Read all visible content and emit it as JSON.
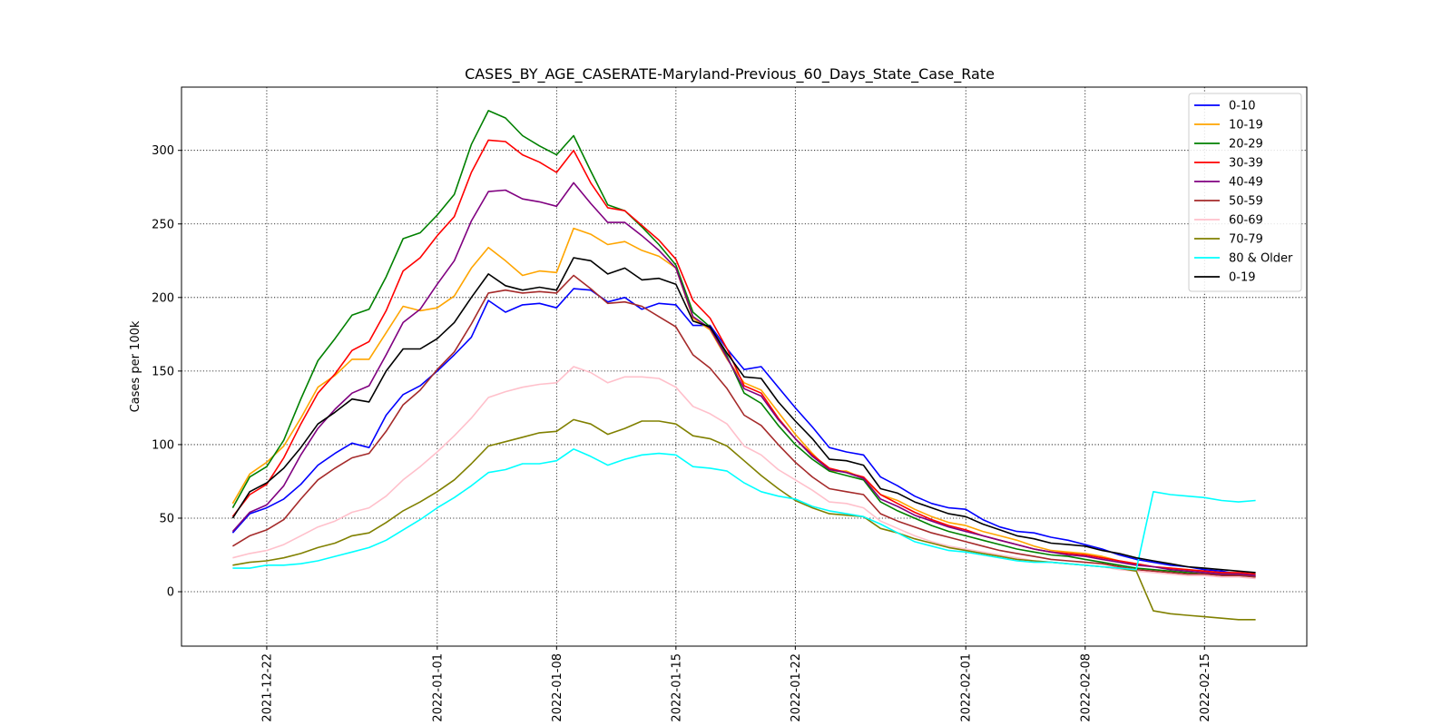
{
  "chart_data": {
    "type": "line",
    "title": "CASES_BY_AGE_CASERATE-Maryland-Previous_60_Days_State_Case_Rate",
    "xlabel": "",
    "ylabel": "Cases per 100k",
    "x_start": "2021-12-20",
    "x": [
      "2021-12-20",
      "2021-12-21",
      "2021-12-22",
      "2021-12-23",
      "2021-12-24",
      "2021-12-25",
      "2021-12-26",
      "2021-12-27",
      "2021-12-28",
      "2021-12-29",
      "2021-12-30",
      "2021-12-31",
      "2022-01-01",
      "2022-01-02",
      "2022-01-03",
      "2022-01-04",
      "2022-01-05",
      "2022-01-06",
      "2022-01-07",
      "2022-01-08",
      "2022-01-09",
      "2022-01-10",
      "2022-01-11",
      "2022-01-12",
      "2022-01-13",
      "2022-01-14",
      "2022-01-15",
      "2022-01-16",
      "2022-01-17",
      "2022-01-18",
      "2022-01-19",
      "2022-01-20",
      "2022-01-21",
      "2022-01-22",
      "2022-01-23",
      "2022-01-24",
      "2022-01-25",
      "2022-01-26",
      "2022-01-27",
      "2022-01-28",
      "2022-01-29",
      "2022-01-30",
      "2022-01-31",
      "2022-02-01",
      "2022-02-02",
      "2022-02-03",
      "2022-02-04",
      "2022-02-05",
      "2022-02-06",
      "2022-02-07",
      "2022-02-08",
      "2022-02-09",
      "2022-02-10",
      "2022-02-11",
      "2022-02-12",
      "2022-02-13",
      "2022-02-14",
      "2022-02-15",
      "2022-02-16",
      "2022-02-17",
      "2022-02-18"
    ],
    "x_ticks": [
      "2021-12-22",
      "2022-01-01",
      "2022-01-08",
      "2022-01-15",
      "2022-01-22",
      "2022-02-01",
      "2022-02-08",
      "2022-02-15"
    ],
    "xlim": [
      "2021-12-17",
      "2022-02-21"
    ],
    "ylim": [
      -37,
      343
    ],
    "y_ticks": [
      0,
      50,
      100,
      150,
      200,
      250,
      300
    ],
    "grid": true,
    "legend_position": "top-right",
    "series": [
      {
        "name": "0-10",
        "color": "#0000ff",
        "values": [
          40,
          53,
          57,
          63,
          73,
          86,
          94,
          101,
          98,
          120,
          134,
          140,
          150,
          161,
          173,
          198,
          190,
          195,
          196,
          193,
          206,
          205,
          197,
          200,
          192,
          196,
          195,
          181,
          181,
          165,
          151,
          153,
          139,
          125,
          112,
          98,
          95,
          93,
          78,
          72,
          65,
          60,
          57,
          56,
          49,
          44,
          41,
          40,
          37,
          35,
          32,
          29,
          25,
          22,
          20,
          18,
          17,
          15,
          14,
          12,
          11
        ]
      },
      {
        "name": "10-19",
        "color": "#ffa500",
        "values": [
          60,
          80,
          88,
          99,
          118,
          139,
          147,
          158,
          158,
          176,
          194,
          191,
          193,
          201,
          220,
          234,
          225,
          215,
          218,
          217,
          247,
          243,
          236,
          238,
          232,
          228,
          220,
          186,
          178,
          158,
          142,
          137,
          122,
          107,
          94,
          82,
          82,
          77,
          66,
          62,
          56,
          51,
          47,
          45,
          41,
          38,
          35,
          31,
          28,
          27,
          26,
          24,
          21,
          19,
          17,
          16,
          15,
          14,
          13,
          12,
          11
        ]
      },
      {
        "name": "20-29",
        "color": "#008000",
        "values": [
          57,
          78,
          85,
          103,
          131,
          157,
          172,
          188,
          192,
          214,
          240,
          244,
          256,
          270,
          304,
          327,
          322,
          310,
          303,
          297,
          310,
          286,
          263,
          259,
          248,
          236,
          222,
          190,
          180,
          160,
          135,
          128,
          113,
          100,
          90,
          82,
          79,
          76,
          61,
          55,
          50,
          45,
          41,
          38,
          35,
          32,
          29,
          27,
          25,
          24,
          22,
          20,
          18,
          16,
          15,
          14,
          13,
          12,
          12,
          11,
          10
        ]
      },
      {
        "name": "30-39",
        "color": "#ff0000",
        "values": [
          51,
          66,
          73,
          91,
          114,
          135,
          148,
          164,
          170,
          191,
          218,
          227,
          242,
          255,
          285,
          307,
          306,
          297,
          292,
          285,
          300,
          278,
          261,
          259,
          249,
          239,
          226,
          198,
          186,
          165,
          140,
          135,
          118,
          104,
          93,
          84,
          81,
          78,
          66,
          60,
          54,
          49,
          45,
          42,
          38,
          35,
          32,
          29,
          27,
          26,
          25,
          23,
          21,
          19,
          17,
          16,
          15,
          14,
          13,
          13,
          12
        ]
      },
      {
        "name": "40-49",
        "color": "#800080",
        "values": [
          41,
          54,
          59,
          72,
          93,
          111,
          124,
          135,
          140,
          161,
          183,
          192,
          209,
          225,
          252,
          272,
          273,
          267,
          265,
          262,
          278,
          264,
          251,
          251,
          242,
          232,
          220,
          187,
          179,
          159,
          138,
          133,
          117,
          104,
          92,
          83,
          81,
          77,
          63,
          58,
          52,
          48,
          44,
          41,
          38,
          35,
          32,
          29,
          27,
          25,
          24,
          22,
          20,
          18,
          17,
          15,
          14,
          13,
          12,
          12,
          11
        ]
      },
      {
        "name": "50-59",
        "color": "#a52a2a",
        "values": [
          31,
          38,
          42,
          49,
          63,
          76,
          84,
          91,
          94,
          109,
          127,
          137,
          151,
          163,
          182,
          203,
          205,
          203,
          204,
          203,
          215,
          206,
          196,
          197,
          194,
          187,
          180,
          161,
          152,
          138,
          120,
          113,
          100,
          88,
          78,
          70,
          68,
          66,
          53,
          48,
          44,
          40,
          37,
          34,
          31,
          28,
          26,
          24,
          22,
          21,
          20,
          19,
          17,
          15,
          14,
          13,
          12,
          12,
          11,
          11,
          10
        ]
      },
      {
        "name": "60-69",
        "color": "#ffc0cb",
        "values": [
          23,
          26,
          28,
          32,
          38,
          44,
          48,
          54,
          57,
          65,
          76,
          85,
          95,
          106,
          118,
          132,
          136,
          139,
          141,
          142,
          153,
          149,
          142,
          146,
          146,
          145,
          139,
          126,
          121,
          114,
          99,
          93,
          83,
          76,
          69,
          61,
          60,
          57,
          48,
          43,
          38,
          34,
          31,
          29,
          27,
          25,
          23,
          21,
          20,
          19,
          18,
          17,
          15,
          14,
          13,
          12,
          11,
          11,
          10,
          10,
          9
        ]
      },
      {
        "name": "70-79",
        "color": "#808000",
        "values": [
          18,
          20,
          21,
          23,
          26,
          30,
          33,
          38,
          40,
          47,
          55,
          61,
          68,
          76,
          87,
          99,
          102,
          105,
          108,
          109,
          117,
          114,
          107,
          111,
          116,
          116,
          114,
          106,
          104,
          99,
          89,
          79,
          70,
          62,
          57,
          53,
          52,
          51,
          43,
          40,
          36,
          33,
          30,
          28,
          26,
          24,
          22,
          21,
          20,
          19,
          18,
          17,
          16,
          14,
          -13,
          -15,
          -16,
          -17,
          -18,
          -19,
          -19
        ]
      },
      {
        "name": "80 & Older",
        "color": "#00ffff",
        "values": [
          16,
          16,
          18,
          18,
          19,
          21,
          24,
          27,
          30,
          35,
          42,
          49,
          57,
          64,
          72,
          81,
          83,
          87,
          87,
          89,
          97,
          92,
          86,
          90,
          93,
          94,
          93,
          85,
          84,
          82,
          74,
          68,
          65,
          63,
          58,
          55,
          53,
          51,
          46,
          40,
          34,
          31,
          28,
          27,
          25,
          23,
          21,
          20,
          20,
          19,
          18,
          17,
          16,
          15,
          68,
          66,
          65,
          64,
          62,
          61,
          62
        ]
      },
      {
        "name": "0-19",
        "color": "#000000",
        "values": [
          50,
          68,
          74,
          84,
          98,
          114,
          122,
          131,
          129,
          150,
          165,
          165,
          172,
          183,
          200,
          216,
          208,
          205,
          207,
          205,
          227,
          225,
          216,
          220,
          212,
          213,
          209,
          184,
          180,
          162,
          146,
          145,
          129,
          116,
          104,
          90,
          89,
          86,
          70,
          67,
          61,
          57,
          53,
          51,
          46,
          42,
          38,
          36,
          33,
          32,
          31,
          28,
          26,
          23,
          21,
          19,
          17,
          16,
          15,
          14,
          13
        ]
      }
    ]
  }
}
